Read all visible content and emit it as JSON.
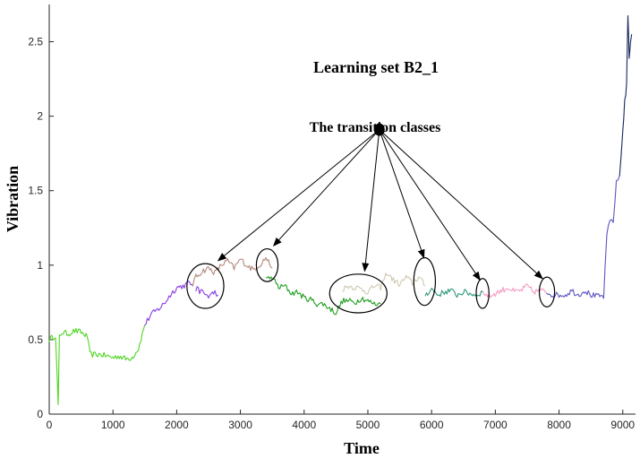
{
  "chart_data": {
    "type": "line",
    "title": "Learning set B2_1",
    "annotation": "The transition classes",
    "xlabel": "Time",
    "ylabel": "Vibration",
    "xlim": [
      0,
      9200
    ],
    "ylim": [
      0,
      2.75
    ],
    "x_ticks": [
      {
        "value": 0,
        "label": "0"
      },
      {
        "value": 1000,
        "label": "1000"
      },
      {
        "value": 2000,
        "label": "2000"
      },
      {
        "value": 3000,
        "label": "3000"
      },
      {
        "value": 4000,
        "label": "4000"
      },
      {
        "value": 5000,
        "label": "5000"
      },
      {
        "value": 6000,
        "label": "6000"
      },
      {
        "value": 7000,
        "label": "7000"
      },
      {
        "value": 8000,
        "label": "8000"
      },
      {
        "value": 9000,
        "label": "9000"
      }
    ],
    "y_ticks": [
      {
        "value": 0,
        "label": "0"
      },
      {
        "value": 0.5,
        "label": "0.5"
      },
      {
        "value": 1,
        "label": "1"
      },
      {
        "value": 1.5,
        "label": "1.5"
      },
      {
        "value": 2,
        "label": "2"
      },
      {
        "value": 2.5,
        "label": "2.5"
      }
    ],
    "grid": false,
    "series": [
      {
        "color": "#4fd620",
        "x": [
          0,
          100,
          140,
          160,
          200,
          300,
          400,
          500,
          600,
          640,
          700,
          800,
          900,
          1000,
          1100,
          1200,
          1300,
          1400,
          1500
        ],
        "y": [
          0.5,
          0.53,
          0.06,
          0.52,
          0.55,
          0.54,
          0.56,
          0.55,
          0.52,
          0.4,
          0.4,
          0.4,
          0.39,
          0.38,
          0.39,
          0.37,
          0.38,
          0.44,
          0.6
        ]
      },
      {
        "color": "#8a3ce6",
        "x": [
          1500,
          1600,
          1700,
          1800,
          1900,
          2000,
          2100,
          2200,
          2250
        ],
        "y": [
          0.6,
          0.67,
          0.7,
          0.74,
          0.8,
          0.85,
          0.86,
          0.88,
          0.87
        ]
      },
      {
        "color": "#b5877b",
        "x": [
          2250,
          2300,
          2400,
          2500,
          2600,
          2700,
          2800,
          2900,
          3000,
          3100,
          3200,
          3300,
          3400,
          3500
        ],
        "y": [
          0.87,
          0.92,
          0.96,
          0.98,
          0.95,
          1.0,
          1.03,
          0.98,
          1.04,
          1.0,
          0.97,
          1.0,
          1.05,
          0.98
        ]
      },
      {
        "color": "#8a3ce6",
        "x": [
          2300,
          2400,
          2500,
          2600,
          2650
        ],
        "y": [
          0.84,
          0.82,
          0.79,
          0.82,
          0.8
        ]
      },
      {
        "color": "#1f9e1f",
        "x": [
          3400,
          3500,
          3600,
          3700,
          3800,
          3900,
          4000,
          4100,
          4200,
          4300,
          4400,
          4500,
          4600,
          4700,
          4800,
          4900,
          5000,
          5100,
          5200
        ],
        "y": [
          0.9,
          0.92,
          0.85,
          0.86,
          0.81,
          0.82,
          0.78,
          0.77,
          0.74,
          0.74,
          0.71,
          0.68,
          0.76,
          0.76,
          0.75,
          0.78,
          0.76,
          0.74,
          0.74
        ]
      },
      {
        "color": "#cfc9b2",
        "x": [
          4600,
          4700,
          4800,
          4900,
          5000,
          5100,
          5200,
          5300,
          5400,
          5500,
          5600,
          5700,
          5800,
          5900
        ],
        "y": [
          0.84,
          0.86,
          0.85,
          0.84,
          0.82,
          0.86,
          0.85,
          0.95,
          0.9,
          0.87,
          0.92,
          0.88,
          0.92,
          0.86
        ]
      },
      {
        "color": "#2a9a7a",
        "x": [
          5900,
          6000,
          6100,
          6200,
          6300,
          6400,
          6500,
          6600,
          6700,
          6800
        ],
        "y": [
          0.8,
          0.84,
          0.8,
          0.82,
          0.83,
          0.8,
          0.82,
          0.81,
          0.8,
          0.82
        ]
      },
      {
        "color": "#f59ac3",
        "x": [
          6800,
          6900,
          7000,
          7100,
          7200,
          7300,
          7400,
          7500,
          7600,
          7700,
          7800
        ],
        "y": [
          0.82,
          0.79,
          0.81,
          0.83,
          0.85,
          0.82,
          0.83,
          0.86,
          0.82,
          0.83,
          0.82
        ]
      },
      {
        "color": "#5b55c4",
        "x": [
          7800,
          7900,
          8000,
          8100,
          8200,
          8300,
          8400,
          8500,
          8600,
          8700,
          8750,
          8800,
          8850,
          8900,
          8950
        ],
        "y": [
          0.82,
          0.8,
          0.8,
          0.8,
          0.83,
          0.8,
          0.83,
          0.8,
          0.79,
          0.79,
          1.2,
          1.3,
          1.3,
          1.55,
          1.6
        ]
      },
      {
        "color": "#17275c",
        "x": [
          8950,
          9000,
          9030,
          9060,
          9080,
          9100,
          9120,
          9140
        ],
        "y": [
          1.6,
          1.9,
          2.1,
          2.2,
          2.68,
          2.4,
          2.5,
          2.55
        ]
      }
    ],
    "transition_circles": [
      {
        "x": 2450,
        "y": 0.86,
        "rx": 290,
        "ry": 0.15
      },
      {
        "x": 3420,
        "y": 1.0,
        "rx": 170,
        "ry": 0.11
      },
      {
        "x": 4850,
        "y": 0.81,
        "rx": 450,
        "ry": 0.13
      },
      {
        "x": 5890,
        "y": 0.89,
        "rx": 170,
        "ry": 0.16
      },
      {
        "x": 6800,
        "y": 0.81,
        "rx": 100,
        "ry": 0.1
      },
      {
        "x": 7810,
        "y": 0.82,
        "rx": 120,
        "ry": 0.1
      }
    ],
    "arrow_origin": {
      "x": 5180,
      "y": 1.91
    },
    "arrow_targets": [
      {
        "x": 2650,
        "y": 1.03
      },
      {
        "x": 3520,
        "y": 1.13
      },
      {
        "x": 4950,
        "y": 0.96
      },
      {
        "x": 5880,
        "y": 1.05
      },
      {
        "x": 6760,
        "y": 0.9
      },
      {
        "x": 7740,
        "y": 0.91
      }
    ]
  }
}
